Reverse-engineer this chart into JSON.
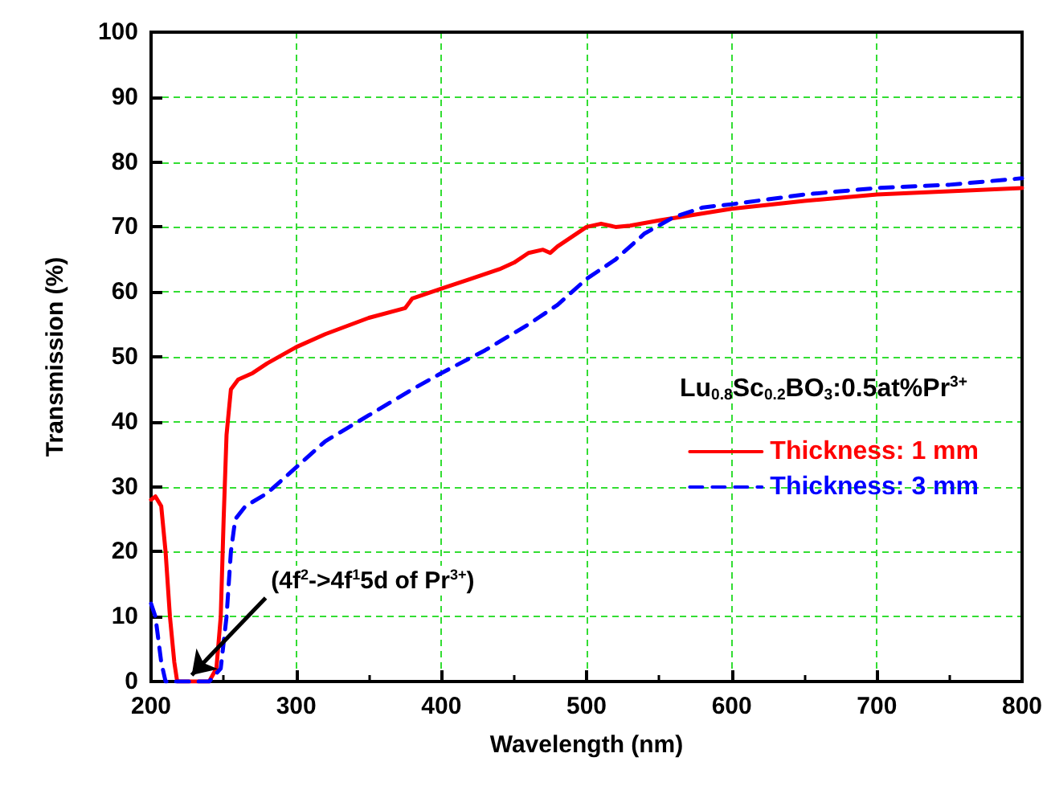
{
  "chart_data": {
    "type": "line",
    "xlabel": "Wavelength (nm)",
    "ylabel": "Transmission (%)",
    "legend_title": "Lu$_{0.8}$Sc$_{0.2}$BO$_{3}$:0.5at%Pr$^{3+}$",
    "xlim": [
      200,
      800
    ],
    "xticks": [
      200,
      300,
      400,
      500,
      600,
      700,
      800
    ],
    "ylim": [
      0,
      100
    ],
    "yticks": [
      0,
      10,
      20,
      30,
      40,
      50,
      60,
      70,
      80,
      90,
      100
    ],
    "grid": true,
    "legend": "right",
    "marker": "none",
    "annotations": [
      {
        "text": "(4f$^{2}$->4f$^{1}$5d of Pr$^{3+}$)",
        "x": 228,
        "y": 1
      }
    ],
    "series": [
      {
        "name": "Thickness: 1 mm",
        "color": "#ff0000",
        "line_style": "solid",
        "x": [
          200,
          203,
          207,
          210,
          213,
          216,
          218,
          240,
          245,
          248,
          250,
          252,
          255,
          260,
          270,
          280,
          300,
          320,
          350,
          375,
          380,
          400,
          420,
          440,
          450,
          460,
          470,
          475,
          480,
          500,
          510,
          520,
          530,
          550,
          600,
          650,
          700,
          750,
          800
        ],
        "values": [
          28,
          28.5,
          27,
          20,
          10,
          3,
          0,
          0,
          2,
          10,
          25,
          38,
          45,
          46.5,
          47.5,
          49,
          51.5,
          53.5,
          56,
          57.5,
          59,
          60.5,
          62,
          63.5,
          64.5,
          66,
          66.5,
          66,
          67,
          70,
          70.5,
          70,
          70.2,
          71,
          72.8,
          74,
          75,
          75.5,
          76
        ]
      },
      {
        "name": "Thickness: 3 mm",
        "color": "#0000ff",
        "line_style": "dashed",
        "x": [
          200,
          203,
          207,
          210,
          240,
          248,
          252,
          255,
          258,
          265,
          280,
          300,
          320,
          350,
          380,
          400,
          430,
          460,
          480,
          500,
          520,
          540,
          560,
          580,
          600,
          650,
          700,
          750,
          800
        ],
        "values": [
          12,
          10,
          3,
          0,
          0,
          2,
          10,
          20,
          25,
          27,
          29,
          33,
          37,
          41,
          45,
          47.5,
          51,
          55,
          58,
          62,
          65,
          69,
          71.5,
          73,
          73.5,
          75,
          76,
          76.5,
          77.5
        ]
      }
    ]
  }
}
